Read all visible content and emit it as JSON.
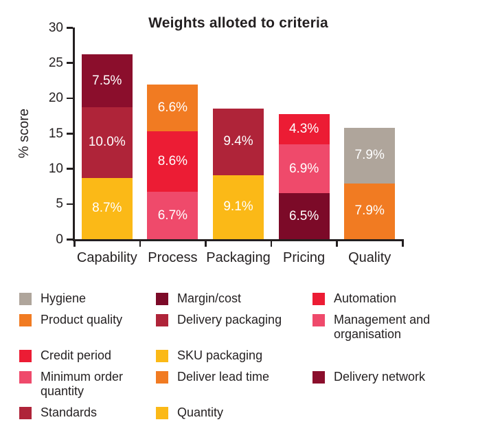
{
  "chart_data": {
    "type": "bar",
    "stacked": true,
    "title": "Weights alloted to criteria",
    "xlabel": "",
    "ylabel": "% score",
    "ylim": [
      0,
      30
    ],
    "yticks": [
      0,
      5,
      10,
      15,
      20,
      25,
      30
    ],
    "grid": false,
    "legend_position": "bottom",
    "categories": [
      "Capability",
      "Process",
      "Packaging",
      "Pricing",
      "Quality"
    ],
    "bars": [
      {
        "category": "Capability",
        "total": 26.2,
        "segments": [
          {
            "label": "Quantity",
            "value": 8.7,
            "display": "8.7%",
            "color": "#FBB917"
          },
          {
            "label": "Standards",
            "value": 10.0,
            "display": "10.0%",
            "color": "#AF2439"
          },
          {
            "label": "Delivery network",
            "value": 7.5,
            "display": "7.5%",
            "color": "#8B0E2C"
          }
        ]
      },
      {
        "category": "Process",
        "total": 21.9,
        "segments": [
          {
            "label": "Management and organisation",
            "value": 6.7,
            "display": "6.7%",
            "color": "#EF4A6B"
          },
          {
            "label": "Automation",
            "value": 8.6,
            "display": "8.6%",
            "color": "#EC1C34"
          },
          {
            "label": "Deliver lead time",
            "value": 6.6,
            "display": "6.6%",
            "color": "#F17B22"
          }
        ]
      },
      {
        "category": "Packaging",
        "total": 18.5,
        "segments": [
          {
            "label": "SKU packaging",
            "value": 9.1,
            "display": "9.1%",
            "color": "#FBB917"
          },
          {
            "label": "Delivery packaging",
            "value": 9.4,
            "display": "9.4%",
            "color": "#AF2439"
          }
        ]
      },
      {
        "category": "Pricing",
        "total": 17.7,
        "segments": [
          {
            "label": "Margin/cost",
            "value": 6.5,
            "display": "6.5%",
            "color": "#7C0A28"
          },
          {
            "label": "Minimum order quantity",
            "value": 6.9,
            "display": "6.9%",
            "color": "#EF4A6B"
          },
          {
            "label": "Credit period",
            "value": 4.3,
            "display": "4.3%",
            "color": "#EC1C34"
          }
        ]
      },
      {
        "category": "Quality",
        "total": 15.8,
        "segments": [
          {
            "label": "Product quality",
            "value": 7.9,
            "display": "7.9%",
            "color": "#F17B22"
          },
          {
            "label": "Hygiene",
            "value": 7.9,
            "display": "7.9%",
            "color": "#AFA59B"
          }
        ]
      }
    ]
  },
  "legend": {
    "items": [
      {
        "label": "Hygiene",
        "color": "#AFA59B",
        "row": 1,
        "col": 1
      },
      {
        "label": "Margin/cost",
        "color": "#7C0A28",
        "row": 1,
        "col": 2
      },
      {
        "label": "Automation",
        "color": "#EC1C34",
        "row": 1,
        "col": 3
      },
      {
        "label": "Product quality",
        "color": "#F17B22",
        "row": 2,
        "col": 1
      },
      {
        "label": "Delivery packaging",
        "color": "#AF2439",
        "row": 2,
        "col": 2
      },
      {
        "label": "Management and organisation",
        "color": "#EF4A6B",
        "row": 2,
        "col": 3
      },
      {
        "label": "Credit period",
        "color": "#EC1C34",
        "row": 3,
        "col": 1
      },
      {
        "label": "SKU packaging",
        "color": "#FBB917",
        "row": 3,
        "col": 2
      },
      {
        "label": "Minimum order quantity",
        "color": "#EF4A6B",
        "row": 4,
        "col": 1
      },
      {
        "label": "Deliver lead time",
        "color": "#F17B22",
        "row": 4,
        "col": 2
      },
      {
        "label": "Delivery network",
        "color": "#8B0E2C",
        "row": 4,
        "col": 3
      },
      {
        "label": "Standards",
        "color": "#AF2439",
        "row": 5,
        "col": 1
      },
      {
        "label": "Quantity",
        "color": "#FBB917",
        "row": 5,
        "col": 2
      }
    ]
  }
}
